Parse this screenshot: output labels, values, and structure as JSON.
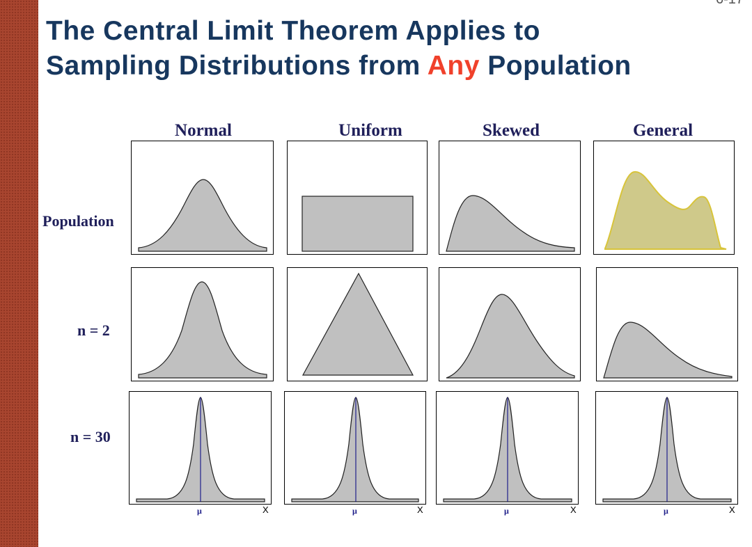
{
  "page_number": "6-17",
  "title": {
    "line1": "The Central Limit Theorem Applies to",
    "line2_before": "Sampling Distributions from ",
    "line2_accent": "Any",
    "line2_after": " Population"
  },
  "columns": [
    "Normal",
    "Uniform",
    "Skewed",
    "General"
  ],
  "rows": [
    "Population",
    "n = 2",
    "n = 30"
  ],
  "axis": {
    "mean_symbol": "μ",
    "x_symbol": "X"
  },
  "colors": {
    "title": "#17375e",
    "accent": "#f0412b",
    "labels": "#1f1f5a",
    "fill": "#c0c0c0",
    "general_fill": "#cfc98a",
    "mean_line": "#1f1f8a",
    "sidebar": "#a8452f"
  }
}
